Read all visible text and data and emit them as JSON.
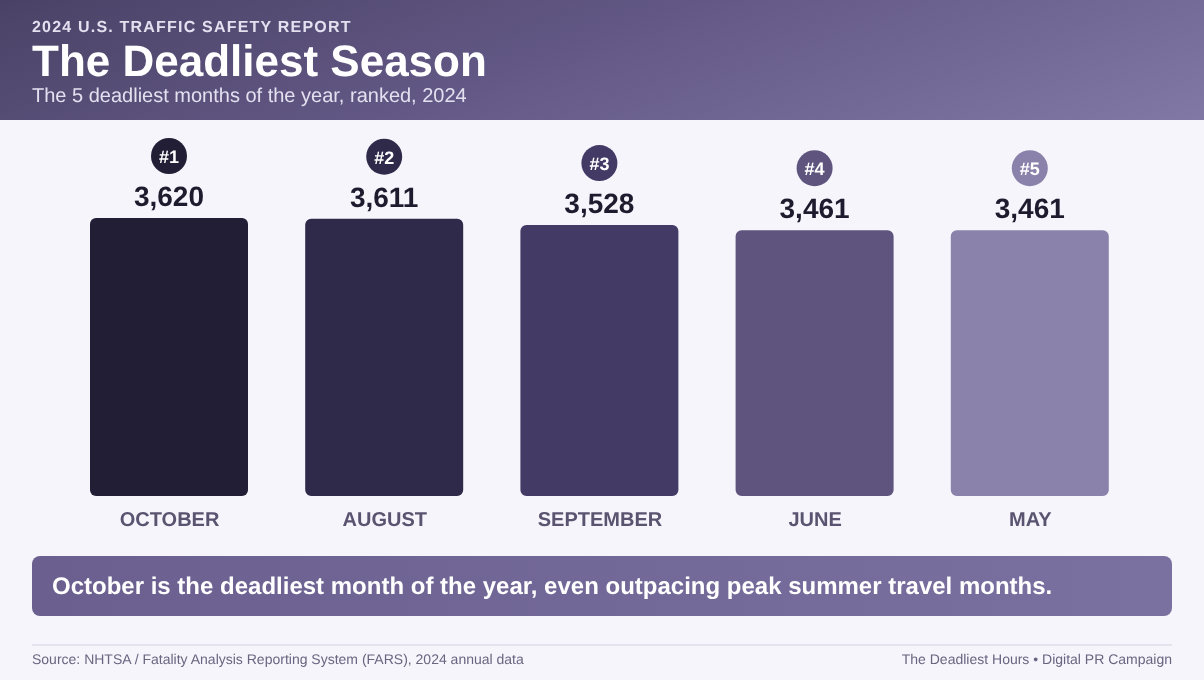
{
  "chart_data": {
    "type": "bar",
    "title": "The Deadliest Season",
    "subtitle": "The 5 deadliest months of the year, ranked, 2024",
    "categories": [
      "OCTOBER",
      "AUGUST",
      "SEPTEMBER",
      "JUNE",
      "MAY"
    ],
    "values": [
      3620,
      3611,
      3528,
      3461,
      3461
    ],
    "value_labels": [
      "3,620",
      "3,611",
      "3,528",
      "3,461",
      "3,461"
    ],
    "colors": [
      "#221e36",
      "#302a4a",
      "#433a66",
      "#5e547e",
      "#8a82aa"
    ],
    "annotations": [
      "2024 U.S. TRAFFIC SAFETY REPORT",
      "#1",
      "#2",
      "#3",
      "#4",
      "#5",
      "October is the deadliest month of the year, even outpacing peak summer travel months.",
      "Source: NHTSA / Fatality Analysis Reporting System (FARS), 2024 annual data",
      "The Deadliest Hours • Digital PR Campaign"
    ],
    "grid": false,
    "legend": false
  }
}
